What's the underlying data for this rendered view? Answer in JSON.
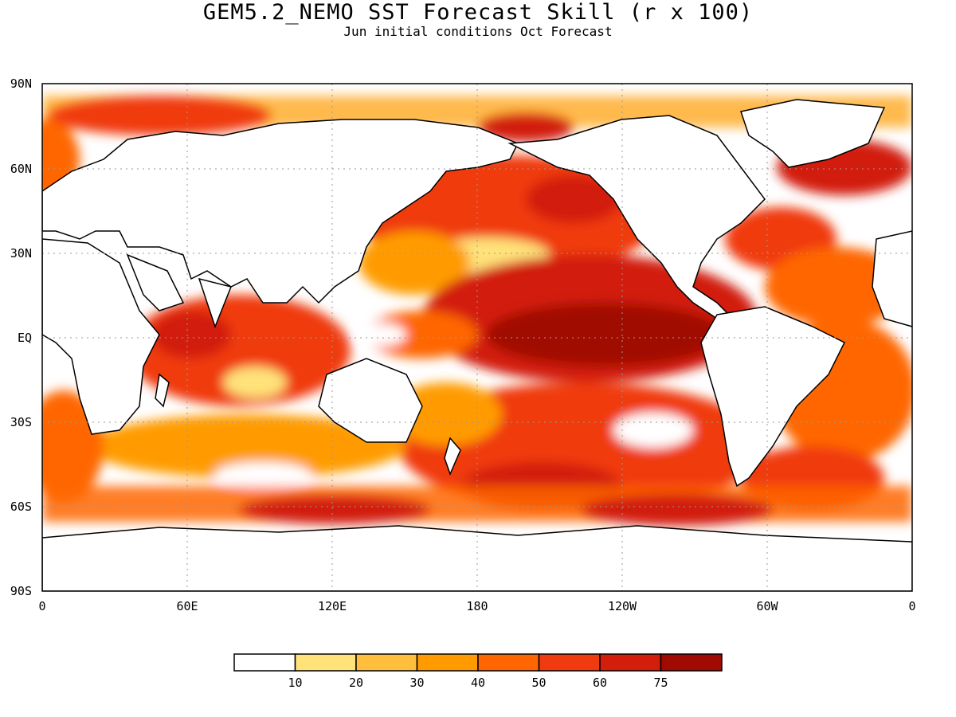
{
  "title": "GEM5.2_NEMO SST Forecast Skill (r x 100)",
  "subtitle": "Jun initial conditions  Oct Forecast",
  "lat_ticks": [
    "90N",
    "60N",
    "30N",
    "EQ",
    "30S",
    "60S",
    "90S"
  ],
  "lon_ticks": [
    "0",
    "60E",
    "120E",
    "180",
    "120W",
    "60W",
    "0"
  ],
  "colorbar": {
    "colors": [
      "#ffffff",
      "#ffe27a",
      "#ffbe3c",
      "#ff9b00",
      "#ff6600",
      "#f03a10",
      "#d21e0a",
      "#a00a00"
    ],
    "labels": [
      "10",
      "20",
      "30",
      "40",
      "50",
      "60",
      "75"
    ]
  }
}
